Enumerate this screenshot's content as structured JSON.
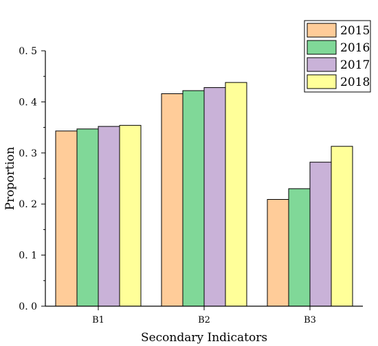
{
  "chart_data": {
    "type": "bar",
    "title": "",
    "xlabel": "Secondary Indicators",
    "ylabel": "Proportion",
    "categories": [
      "B1",
      "B2",
      "B3"
    ],
    "ylim": [
      0,
      0.5
    ],
    "yticks": [
      "0. 0",
      "0. 1",
      "0. 2",
      "0. 3",
      "0. 4",
      "0. 5"
    ],
    "legend_position": "top-right",
    "grid": false,
    "series": [
      {
        "name": "2015",
        "color": "#FFCC99",
        "values": [
          0.343,
          0.416,
          0.209
        ]
      },
      {
        "name": "2016",
        "color": "#80D898",
        "values": [
          0.347,
          0.422,
          0.23
        ]
      },
      {
        "name": "2017",
        "color": "#C9B2D8",
        "values": [
          0.352,
          0.428,
          0.282
        ]
      },
      {
        "name": "2018",
        "color": "#FFFF99",
        "values": [
          0.354,
          0.438,
          0.313
        ]
      }
    ]
  }
}
